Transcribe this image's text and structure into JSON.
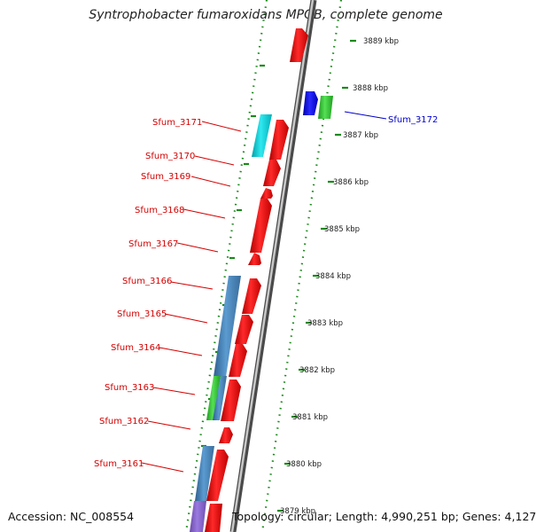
{
  "title": "Syntrophobacter fumaroxidans MPOB, complete genome",
  "footer": {
    "accession": "Accession: NC_008554",
    "topology": "Topology: circular; Length: 4,990,251 bp; Genes: 4,127"
  },
  "ticks": [
    "3889 kbp",
    "3888 kbp",
    "3887 kbp",
    "3886 kbp",
    "3885 kbp",
    "3884 kbp",
    "3883 kbp",
    "3882 kbp",
    "3881 kbp",
    "3880 kbp",
    "3879 kbp"
  ],
  "genes": [
    {
      "label": "Sfum_3172",
      "color": "#1a7a1a"
    },
    {
      "label": "Sfum_3171",
      "color": "#00d0d0"
    },
    {
      "label": "Sfum_3170",
      "color": "#ff0000"
    },
    {
      "label": "Sfum_3169",
      "color": "#ff0000"
    },
    {
      "label": "Sfum_3168",
      "color": "#ff0000"
    },
    {
      "label": "Sfum_3167",
      "color": "#ff0000"
    },
    {
      "label": "Sfum_3166",
      "color": "#4682b4"
    },
    {
      "label": "Sfum_3165",
      "color": "#ff0000"
    },
    {
      "label": "Sfum_3164",
      "color": "#ff0000"
    },
    {
      "label": "Sfum_3163",
      "color": "#33cc33"
    },
    {
      "label": "Sfum_3162",
      "color": "#ff0000"
    },
    {
      "label": "Sfum_3161",
      "color": "#4682b4"
    }
  ],
  "colors": {
    "cds_reverse": "#ff0000",
    "cds_blue": "#0000ff",
    "cds_green": "#33cc33",
    "cds_cyan": "#00cccc",
    "cds_steel": "#4682b4",
    "cds_purple": "#8866cc",
    "backbone": "#8a8a8a",
    "dots": "#1a8a1a"
  }
}
